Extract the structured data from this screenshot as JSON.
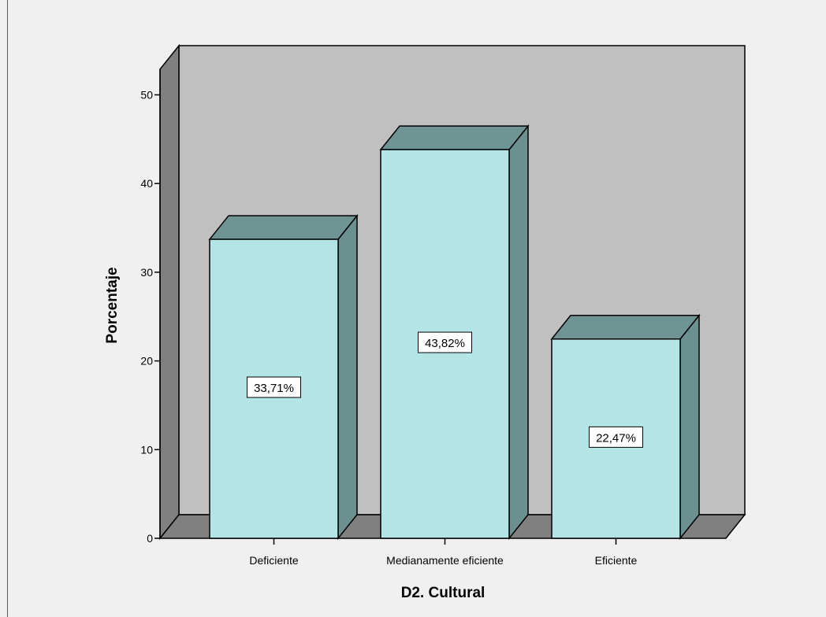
{
  "chart_data": {
    "type": "bar",
    "xlabel": "D2. Cultural",
    "ylabel": "Porcentaje",
    "categories": [
      "Deficiente",
      "Medianamente eficiente",
      "Eficiente"
    ],
    "values": [
      33.71,
      43.82,
      22.47
    ],
    "data_labels": [
      "33,71%",
      "43,82%",
      "22,47%"
    ],
    "yticks": [
      0,
      10,
      20,
      30,
      40,
      50
    ],
    "ylim": [
      0,
      55
    ],
    "style": "3d",
    "grid": false,
    "legend": "none",
    "colors": {
      "bar_front": "#b3e5e6",
      "bar_side": "#6c9090",
      "bar_top": "#6f9494",
      "back_wall": "#c0c0c0",
      "side_wall": "#808080",
      "floor": "#808080",
      "background": "#f0f0f0"
    }
  }
}
